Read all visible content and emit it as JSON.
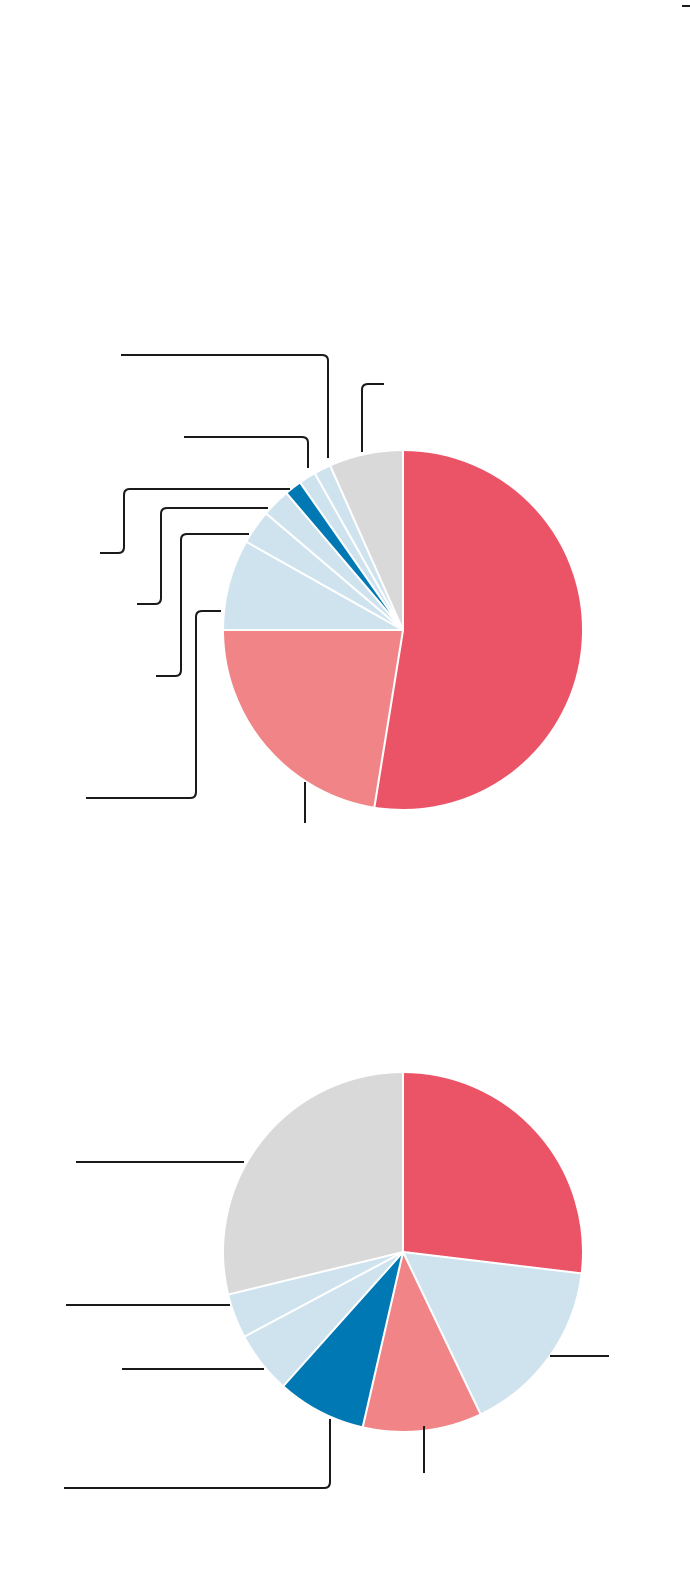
{
  "colors": {
    "red": "#eb5366",
    "pink": "#f08487",
    "light_blue": "#cfe3ef",
    "blue": "#0078b4",
    "gray": "#d9d9d9"
  },
  "chart_data": [
    {
      "type": "pie",
      "title": "",
      "slices": [
        {
          "value": 51.5,
          "color_key": "red"
        },
        {
          "value": 22.0,
          "color_key": "pink"
        },
        {
          "value": 8.0,
          "color_key": "light_blue"
        },
        {
          "value": 3.0,
          "color_key": "light_blue"
        },
        {
          "value": 2.5,
          "color_key": "light_blue"
        },
        {
          "value": 1.5,
          "color_key": "blue"
        },
        {
          "value": 1.5,
          "color_key": "light_blue"
        },
        {
          "value": 1.5,
          "color_key": "light_blue"
        },
        {
          "value": 6.5,
          "color_key": "gray"
        }
      ],
      "legend": "none"
    },
    {
      "type": "pie",
      "title": "",
      "slices": [
        {
          "value": 26.9,
          "color_key": "red"
        },
        {
          "value": 16.0,
          "color_key": "light_blue"
        },
        {
          "value": 10.7,
          "color_key": "pink"
        },
        {
          "value": 8.0,
          "color_key": "blue"
        },
        {
          "value": 5.6,
          "color_key": "light_blue"
        },
        {
          "value": 4.0,
          "color_key": "light_blue"
        },
        {
          "value": 28.8,
          "color_key": "gray"
        }
      ],
      "legend": "none"
    }
  ]
}
